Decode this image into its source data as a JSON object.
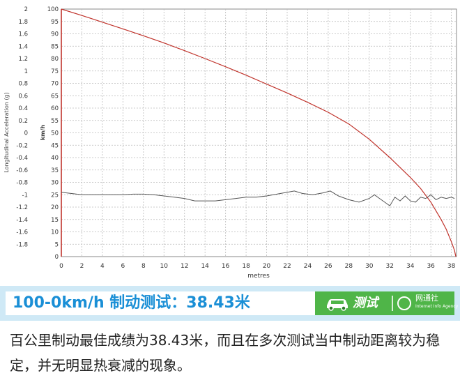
{
  "chart_data": {
    "type": "line",
    "xlabel": "metres",
    "ylabel_left": "Longitudinal Acceleration (g)",
    "ylabel_right": "km/h",
    "xlim": [
      0,
      38.5
    ],
    "ylim_left": [
      -2,
      2
    ],
    "ylim_right": [
      0,
      100
    ],
    "x_ticks": [
      "0",
      "2",
      "4",
      "6",
      "8",
      "10",
      "12",
      "14",
      "16",
      "18",
      "20",
      "22",
      "24",
      "26",
      "28",
      "30",
      "32",
      "34",
      "36",
      "38"
    ],
    "y_left_ticks": [
      "2",
      "1.8",
      "1.6",
      "1.4",
      "1.2",
      "1",
      "0.8",
      "0.6",
      "0.4",
      "0.2",
      "0",
      "-0.2",
      "-0.4",
      "-0.6",
      "-0.8",
      "-1",
      "-1.2",
      "-1.4",
      "-1.6",
      "-1.8"
    ],
    "y_right_ticks": [
      "100",
      "95",
      "90",
      "85",
      "80",
      "75",
      "70",
      "65",
      "60",
      "55",
      "50",
      "45",
      "40",
      "35",
      "30",
      "25",
      "20",
      "15",
      "10",
      "5",
      "0"
    ],
    "grid": true,
    "series": [
      {
        "axis": "right",
        "color": "#c0332b",
        "x": [
          0,
          2,
          4,
          6,
          8,
          10,
          12,
          14,
          16,
          18,
          20,
          22,
          24,
          26,
          28,
          30,
          32,
          34,
          35,
          36,
          37,
          37.5,
          38,
          38.3,
          38.43
        ],
        "y": [
          100,
          97.4,
          94.7,
          92.0,
          89.2,
          86.3,
          83.2,
          80.0,
          76.7,
          73.3,
          69.7,
          66.1,
          62.3,
          58.3,
          53.6,
          47.4,
          40.0,
          32.0,
          27.5,
          22.0,
          15.0,
          11.0,
          6.0,
          2.5,
          0
        ]
      },
      {
        "axis": "left",
        "color": "#555555",
        "x": [
          0,
          1,
          2,
          3,
          4,
          5,
          6,
          7,
          8,
          9,
          10,
          11,
          12,
          13,
          14,
          15,
          16,
          17,
          18,
          19,
          20,
          21,
          22,
          22.7,
          23.5,
          24.5,
          25.5,
          26.2,
          27,
          28,
          29,
          30,
          30.5,
          31,
          31.5,
          32,
          32.5,
          33,
          33.5,
          34,
          34.5,
          35,
          35.5,
          36,
          36.5,
          37,
          37.5,
          38,
          38.3
        ],
        "y": [
          -0.96,
          -0.98,
          -1.0,
          -1.0,
          -1.0,
          -1.0,
          -1.0,
          -0.99,
          -0.99,
          -1.0,
          -1.02,
          -1.04,
          -1.06,
          -1.1,
          -1.1,
          -1.1,
          -1.08,
          -1.06,
          -1.04,
          -1.04,
          -1.02,
          -0.99,
          -0.96,
          -0.94,
          -0.98,
          -1.0,
          -0.97,
          -0.94,
          -1.02,
          -1.08,
          -1.12,
          -1.06,
          -1.0,
          -1.06,
          -1.12,
          -1.18,
          -1.04,
          -1.1,
          -1.02,
          -1.1,
          -1.12,
          -1.04,
          -1.06,
          -1.0,
          -1.08,
          -1.04,
          -1.06,
          -1.04,
          -1.06
        ]
      }
    ]
  },
  "banner": {
    "title": "100-0km/h 制动测试：38.43米",
    "badge_text": "测试",
    "logo_cn": "网通社",
    "logo_en": "Internet Info Agency"
  },
  "caption": "百公里制动最佳成绩为38.43米，而且在多次测试当中制动距离较为稳定，并无明显热衰减的现象。"
}
